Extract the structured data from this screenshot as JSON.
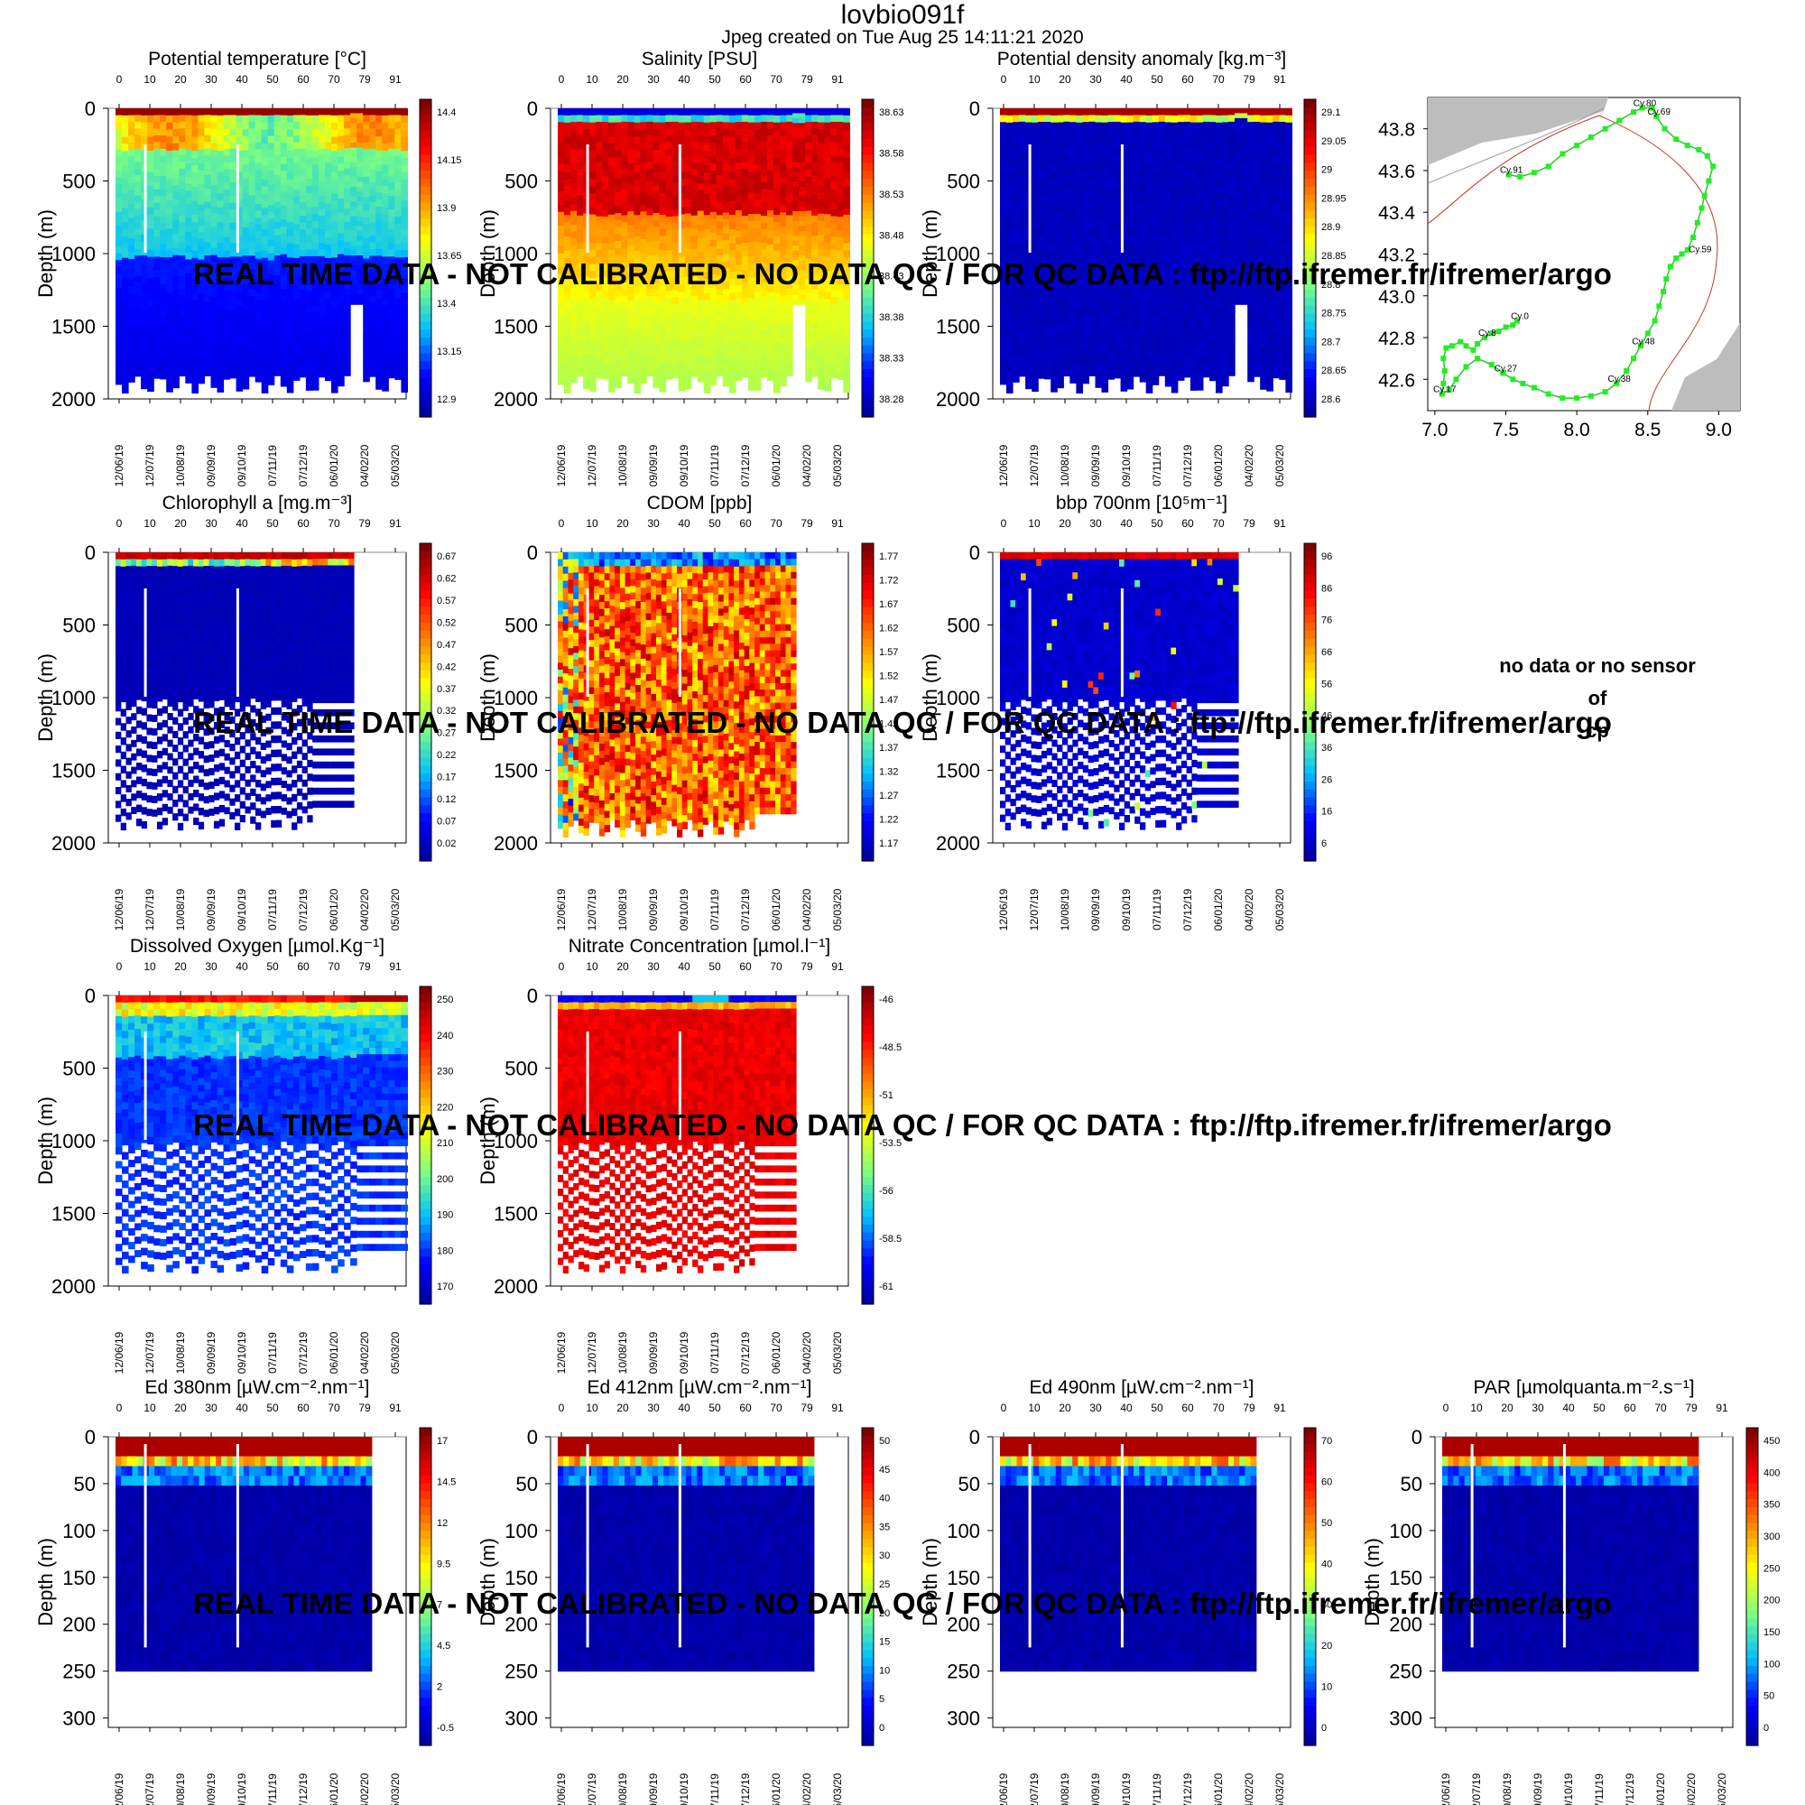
{
  "header": {
    "title": "lovbio091f",
    "subtitle": "Jpeg created on  Tue Aug 25 14:11:21 2020"
  },
  "watermark": "REAL TIME DATA - NOT CALIBRATED - NO DATA QC  /  FOR QC DATA : ftp://ftp.ifremer.fr/ifremer/argo",
  "nodata": [
    "no data or no sensor",
    "of",
    "cp"
  ],
  "axis_common": {
    "ylabel": "Depth (m)",
    "cycle_ticks": [
      "0",
      "10",
      "20",
      "30",
      "40",
      "50",
      "60",
      "70",
      "79",
      "91"
    ],
    "date_ticks": [
      "12/06/19",
      "12/07/19",
      "10/08/19",
      "09/09/19",
      "09/10/19",
      "07/11/19",
      "07/12/19",
      "06/01/20",
      "04/02/20",
      "05/03/20"
    ]
  },
  "colors": {
    "ramp": [
      "#00008f",
      "#0000ff",
      "#00bfff",
      "#7fff7f",
      "#ffff00",
      "#ff7f00",
      "#ff0000",
      "#7f0000"
    ]
  },
  "chart_data": [
    {
      "id": "temp",
      "type": "heatmap",
      "title": "Potential temperature [°C]",
      "ylabel": "Depth (m)",
      "ylim": [
        0,
        2000
      ],
      "y_ticks": [
        "0",
        "500",
        "1000",
        "1500",
        "2000"
      ],
      "colorbar": [
        "14.4",
        "14.15",
        "13.9",
        "13.65",
        "13.4",
        "13.15",
        "12.9"
      ],
      "style": "temp"
    },
    {
      "id": "sal",
      "type": "heatmap",
      "title": "Salinity [PSU]",
      "ylabel": "Depth (m)",
      "ylim": [
        0,
        2000
      ],
      "y_ticks": [
        "0",
        "500",
        "1000",
        "1500",
        "2000"
      ],
      "colorbar": [
        "38.63",
        "38.58",
        "38.53",
        "38.48",
        "38.43",
        "38.38",
        "38.33",
        "38.28"
      ],
      "style": "sal"
    },
    {
      "id": "dens",
      "type": "heatmap",
      "title": "Potential density anomaly [kg.m⁻³]",
      "ylabel": "Depth (m)",
      "ylim": [
        0,
        2000
      ],
      "y_ticks": [
        "0",
        "500",
        "1000",
        "1500",
        "2000"
      ],
      "colorbar": [
        "29.1",
        "29.05",
        "29",
        "28.95",
        "28.9",
        "28.85",
        "28.8",
        "28.75",
        "28.7",
        "28.65",
        "28.6"
      ],
      "style": "dens"
    },
    {
      "id": "chla",
      "type": "heatmap",
      "title": "Chlorophyll a [mg.m⁻³]",
      "ylabel": "Depth (m)",
      "ylim": [
        0,
        2000
      ],
      "y_ticks": [
        "0",
        "500",
        "1000",
        "1500",
        "2000"
      ],
      "colorbar": [
        "0.67",
        "0.62",
        "0.57",
        "0.52",
        "0.47",
        "0.42",
        "0.37",
        "0.32",
        "0.27",
        "0.22",
        "0.17",
        "0.12",
        "0.07",
        "0.02"
      ],
      "style": "chla"
    },
    {
      "id": "cdom",
      "type": "heatmap",
      "title": "CDOM  [ppb]",
      "ylabel": "Depth (m)",
      "ylim": [
        0,
        2000
      ],
      "y_ticks": [
        "0",
        "500",
        "1000",
        "1500",
        "2000"
      ],
      "colorbar": [
        "1.77",
        "1.72",
        "1.67",
        "1.62",
        "1.57",
        "1.52",
        "1.47",
        "1.42",
        "1.37",
        "1.32",
        "1.27",
        "1.22",
        "1.17"
      ],
      "style": "cdom"
    },
    {
      "id": "bbp",
      "type": "heatmap",
      "title": "bbp 700nm [10⁵m⁻¹]",
      "ylabel": "Depth (m)",
      "ylim": [
        0,
        2000
      ],
      "y_ticks": [
        "0",
        "500",
        "1000",
        "1500",
        "2000"
      ],
      "colorbar": [
        "96",
        "86",
        "76",
        "66",
        "56",
        "46",
        "36",
        "26",
        "16",
        "6"
      ],
      "style": "bbp"
    },
    {
      "id": "oxy",
      "type": "heatmap",
      "title": "Dissolved Oxygen [µmol.Kg⁻¹]",
      "ylabel": "Depth (m)",
      "ylim": [
        0,
        2000
      ],
      "y_ticks": [
        "0",
        "500",
        "1000",
        "1500",
        "2000"
      ],
      "colorbar": [
        "250",
        "240",
        "230",
        "220",
        "210",
        "200",
        "190",
        "180",
        "170"
      ],
      "style": "oxy"
    },
    {
      "id": "nitrate",
      "type": "heatmap",
      "title": "Nitrate Concentration [µmol.l⁻¹]",
      "ylabel": "Depth (m)",
      "ylim": [
        0,
        2000
      ],
      "y_ticks": [
        "0",
        "500",
        "1000",
        "1500",
        "2000"
      ],
      "colorbar": [
        "-46",
        "-48.5",
        "-51",
        "-53.5",
        "-56",
        "-58.5",
        "-61"
      ],
      "style": "nitrate"
    },
    {
      "id": "ed380",
      "type": "heatmap",
      "title": "Ed 380nm [µW.cm⁻².nm⁻¹]",
      "ylabel": "Depth (m)",
      "ylim": [
        0,
        310
      ],
      "y_ticks": [
        "0",
        "50",
        "100",
        "150",
        "200",
        "250",
        "300"
      ],
      "colorbar": [
        "17",
        "14.5",
        "12",
        "9.5",
        "7",
        "4.5",
        "2",
        "-0.5"
      ],
      "style": "ed"
    },
    {
      "id": "ed412",
      "type": "heatmap",
      "title": "Ed 412nm [µW.cm⁻².nm⁻¹]",
      "ylabel": "Depth (m)",
      "ylim": [
        0,
        310
      ],
      "y_ticks": [
        "0",
        "50",
        "100",
        "150",
        "200",
        "250",
        "300"
      ],
      "colorbar": [
        "50",
        "45",
        "40",
        "35",
        "30",
        "25",
        "20",
        "15",
        "10",
        "5",
        "0"
      ],
      "style": "ed"
    },
    {
      "id": "ed490",
      "type": "heatmap",
      "title": "Ed 490nm [µW.cm⁻².nm⁻¹]",
      "ylabel": "Depth (m)",
      "ylim": [
        0,
        310
      ],
      "y_ticks": [
        "0",
        "50",
        "100",
        "150",
        "200",
        "250",
        "300"
      ],
      "colorbar": [
        "70",
        "60",
        "50",
        "40",
        "30",
        "20",
        "10",
        "0"
      ],
      "style": "ed"
    },
    {
      "id": "par",
      "type": "heatmap",
      "title": "PAR [µmolquanta.m⁻².s⁻¹]",
      "ylabel": "Depth (m)",
      "ylim": [
        0,
        310
      ],
      "y_ticks": [
        "0",
        "50",
        "100",
        "150",
        "200",
        "250",
        "300"
      ],
      "colorbar": [
        "450",
        "400",
        "350",
        "300",
        "250",
        "200",
        "150",
        "100",
        "50",
        "0"
      ],
      "style": "ed"
    },
    {
      "id": "map",
      "type": "scatter",
      "title": "",
      "xlim": [
        6.95,
        9.15
      ],
      "ylim": [
        42.45,
        43.95
      ],
      "x_ticks": [
        "7.0",
        "7.5",
        "8.0",
        "8.5",
        "9.0"
      ],
      "y_ticks": [
        "42.6",
        "42.8",
        "43.0",
        "43.2",
        "43.4",
        "43.6",
        "43.8"
      ],
      "track": [
        [
          7.58,
          42.88
        ],
        [
          7.55,
          42.86
        ],
        [
          7.5,
          42.85
        ],
        [
          7.45,
          42.83
        ],
        [
          7.4,
          42.82
        ],
        [
          7.35,
          42.8
        ],
        [
          7.3,
          42.77
        ],
        [
          7.27,
          42.74
        ],
        [
          7.22,
          42.76
        ],
        [
          7.18,
          42.78
        ],
        [
          7.12,
          42.76
        ],
        [
          7.08,
          42.75
        ],
        [
          7.06,
          42.7
        ],
        [
          7.07,
          42.64
        ],
        [
          7.06,
          42.58
        ],
        [
          7.05,
          42.53
        ],
        [
          7.1,
          42.55
        ],
        [
          7.15,
          42.6
        ],
        [
          7.22,
          42.66
        ],
        [
          7.3,
          42.7
        ],
        [
          7.4,
          42.67
        ],
        [
          7.48,
          42.63
        ],
        [
          7.55,
          42.6
        ],
        [
          7.62,
          42.58
        ],
        [
          7.7,
          42.56
        ],
        [
          7.8,
          42.53
        ],
        [
          7.9,
          42.51
        ],
        [
          8.0,
          42.51
        ],
        [
          8.1,
          42.52
        ],
        [
          8.2,
          42.54
        ],
        [
          8.28,
          42.58
        ],
        [
          8.35,
          42.64
        ],
        [
          8.4,
          42.7
        ],
        [
          8.45,
          42.76
        ],
        [
          8.5,
          42.82
        ],
        [
          8.55,
          42.88
        ],
        [
          8.58,
          42.95
        ],
        [
          8.61,
          43.02
        ],
        [
          8.63,
          43.08
        ],
        [
          8.66,
          43.14
        ],
        [
          8.7,
          43.18
        ],
        [
          8.74,
          43.2
        ],
        [
          8.78,
          43.22
        ],
        [
          8.82,
          43.28
        ],
        [
          8.85,
          43.35
        ],
        [
          8.88,
          43.42
        ],
        [
          8.9,
          43.48
        ],
        [
          8.93,
          43.55
        ],
        [
          8.96,
          43.62
        ],
        [
          8.92,
          43.67
        ],
        [
          8.86,
          43.7
        ],
        [
          8.78,
          43.72
        ],
        [
          8.7,
          43.75
        ],
        [
          8.62,
          43.8
        ],
        [
          8.56,
          43.86
        ],
        [
          8.53,
          43.9
        ],
        [
          8.46,
          43.9
        ],
        [
          8.4,
          43.88
        ],
        [
          8.3,
          43.84
        ],
        [
          8.2,
          43.8
        ],
        [
          8.1,
          43.76
        ],
        [
          8.0,
          43.72
        ],
        [
          7.9,
          43.68
        ],
        [
          7.8,
          43.62
        ],
        [
          7.7,
          43.59
        ],
        [
          7.6,
          43.57
        ],
        [
          7.52,
          43.58
        ]
      ],
      "labels": [
        {
          "text": "Cy.0",
          "lon": 7.58,
          "lat": 42.88
        },
        {
          "text": "Cy.8",
          "lon": 7.35,
          "lat": 42.8
        },
        {
          "text": "Cy.17",
          "lon": 7.05,
          "lat": 42.53
        },
        {
          "text": "Cy.27",
          "lon": 7.48,
          "lat": 42.63
        },
        {
          "text": "Cy.38",
          "lon": 8.28,
          "lat": 42.58
        },
        {
          "text": "Cy.48",
          "lon": 8.45,
          "lat": 42.76
        },
        {
          "text": "Cy.59",
          "lon": 8.85,
          "lat": 43.2
        },
        {
          "text": "Cy.69",
          "lon": 8.56,
          "lat": 43.86
        },
        {
          "text": "Cy.80",
          "lon": 8.46,
          "lat": 43.9
        },
        {
          "text": "Cy.91",
          "lon": 7.52,
          "lat": 43.58
        }
      ]
    }
  ]
}
